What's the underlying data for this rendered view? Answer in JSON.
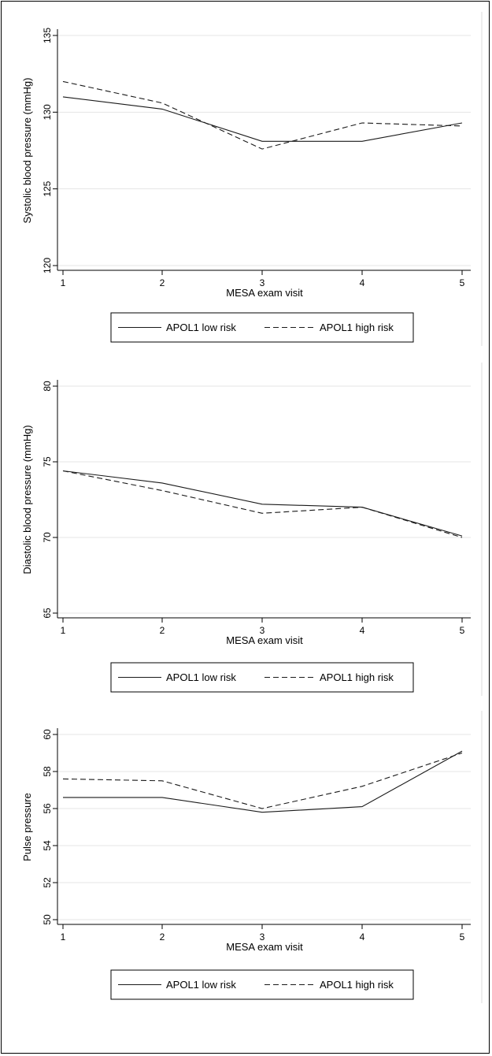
{
  "chart_data": [
    {
      "type": "line",
      "xlabel": "MESA exam visit",
      "ylabel": "Systolic blood pressure (mmHg)",
      "x": [
        1,
        2,
        3,
        4,
        5
      ],
      "ylim": [
        120,
        135
      ],
      "yticks": [
        120,
        125,
        130,
        135
      ],
      "grid": true,
      "legend": "bottom",
      "series": [
        {
          "name": "APOL1 low risk",
          "style": "solid",
          "values": [
            131.0,
            130.2,
            128.1,
            128.1,
            129.3
          ]
        },
        {
          "name": "APOL1 high risk",
          "style": "dashed",
          "values": [
            132.0,
            130.6,
            127.6,
            129.3,
            129.1
          ]
        }
      ]
    },
    {
      "type": "line",
      "xlabel": "MESA exam visit",
      "ylabel": "Diastolic blood pressure (mmHg)",
      "x": [
        1,
        2,
        3,
        4,
        5
      ],
      "ylim": [
        65,
        80
      ],
      "yticks": [
        65,
        70,
        75,
        80
      ],
      "grid": true,
      "legend": "bottom",
      "series": [
        {
          "name": "APOL1 low risk",
          "style": "solid",
          "values": [
            74.4,
            73.6,
            72.2,
            72.0,
            70.1
          ]
        },
        {
          "name": "APOL1 high risk",
          "style": "dashed",
          "values": [
            74.4,
            73.1,
            71.6,
            72.0,
            70.0
          ]
        }
      ]
    },
    {
      "type": "line",
      "xlabel": "MESA exam visit",
      "ylabel": "Pulse pressure",
      "x": [
        1,
        2,
        3,
        4,
        5
      ],
      "ylim": [
        50,
        60
      ],
      "yticks": [
        50,
        52,
        54,
        56,
        58,
        60
      ],
      "grid": true,
      "legend": "bottom",
      "series": [
        {
          "name": "APOL1 low risk",
          "style": "solid",
          "values": [
            56.6,
            56.6,
            55.8,
            56.1,
            59.1
          ]
        },
        {
          "name": "APOL1 high risk",
          "style": "dashed",
          "values": [
            57.6,
            57.5,
            56.0,
            57.2,
            59.0
          ]
        }
      ]
    }
  ]
}
